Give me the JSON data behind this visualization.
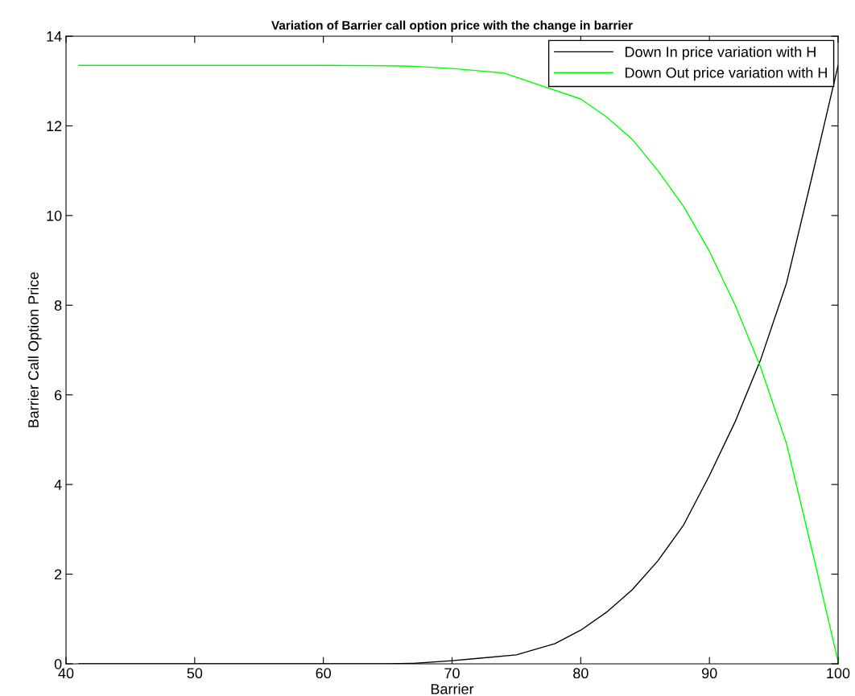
{
  "chart_data": {
    "type": "line",
    "title": "Variation of Barrier call option price with the change in barrier",
    "xlabel": "Barrier",
    "ylabel": "Barrier Call Option Price",
    "x": [
      41,
      50,
      60,
      65,
      67,
      70,
      72,
      75,
      78,
      80,
      82,
      84,
      86,
      88,
      90,
      92,
      94,
      96,
      98,
      100
    ],
    "series": [
      {
        "name": "Down In price variation with H",
        "color": "#000000",
        "values": [
          0,
          0,
          0,
          0,
          0.01,
          0.07,
          0.12,
          0.2,
          0.45,
          0.75,
          1.15,
          1.65,
          2.3,
          3.1,
          4.2,
          5.4,
          6.8,
          8.5,
          10.9,
          13.35
        ]
      },
      {
        "name": "Down Out price variation with H",
        "color": "#00ff00",
        "x": [
          41,
          50,
          60,
          65,
          67,
          70,
          72,
          74,
          80,
          82,
          84,
          86,
          88,
          90,
          92,
          94,
          96,
          98,
          100
        ],
        "values": [
          13.35,
          13.35,
          13.35,
          13.34,
          13.33,
          13.28,
          13.23,
          13.18,
          12.6,
          12.2,
          11.7,
          11.0,
          10.2,
          9.2,
          8.0,
          6.6,
          4.9,
          2.5,
          0.05
        ]
      }
    ],
    "xlim": [
      40,
      100
    ],
    "xticks": [
      40,
      50,
      60,
      70,
      80,
      90,
      100
    ],
    "ylim": [
      0,
      14
    ],
    "yticks": [
      0,
      2,
      4,
      6,
      8,
      10,
      12,
      14
    ],
    "grid": false,
    "legend": "top right"
  }
}
